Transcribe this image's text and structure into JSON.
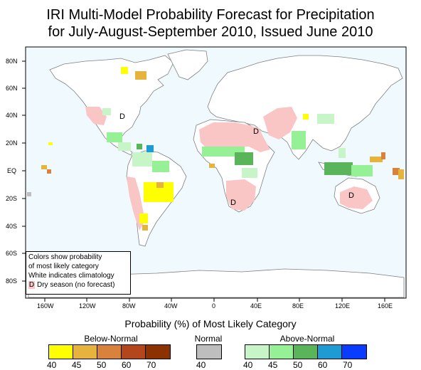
{
  "title_line1": "IRI Multi-Model Probability Forecast for Precipitation",
  "title_line2": "for July-August-September 2010, Issued June 2010",
  "lat_labels": [
    "80N",
    "60N",
    "40N",
    "20N",
    "EQ",
    "20S",
    "40S",
    "60S",
    "80S"
  ],
  "lon_labels": [
    "160W",
    "120W",
    "80W",
    "40W",
    "0",
    "40E",
    "80E",
    "120E",
    "160E"
  ],
  "map_markers": [
    "D",
    "D",
    "D",
    "D"
  ],
  "inset_legend": {
    "line1": "Colors show probability",
    "line2": "of most likely category",
    "line3": "White indicates climatology",
    "dry_symbol": "D",
    "dry_text": "Dry season (no forecast)"
  },
  "legend": {
    "title": "Probability (%) of Most Likely Category",
    "below": {
      "label": "Below-Normal",
      "ticks": [
        "40",
        "45",
        "50",
        "60",
        "70"
      ],
      "colors": [
        "#ffff00",
        "#e6b43c",
        "#d9823c",
        "#b4461e",
        "#8c3200"
      ]
    },
    "normal": {
      "label": "Normal",
      "ticks": [
        "40"
      ],
      "colors": [
        "#bebebe"
      ]
    },
    "above": {
      "label": "Above-Normal",
      "ticks": [
        "40",
        "45",
        "50",
        "60",
        "70"
      ],
      "colors": [
        "#c8f5c8",
        "#96f096",
        "#5ab45a",
        "#1e9bd2",
        "#0a3cff"
      ]
    }
  },
  "colors": {
    "ocean": "#f0fafe",
    "land": "#ffffff",
    "dry_season": "#f9c5c5",
    "coast": "#7f7f7f"
  }
}
